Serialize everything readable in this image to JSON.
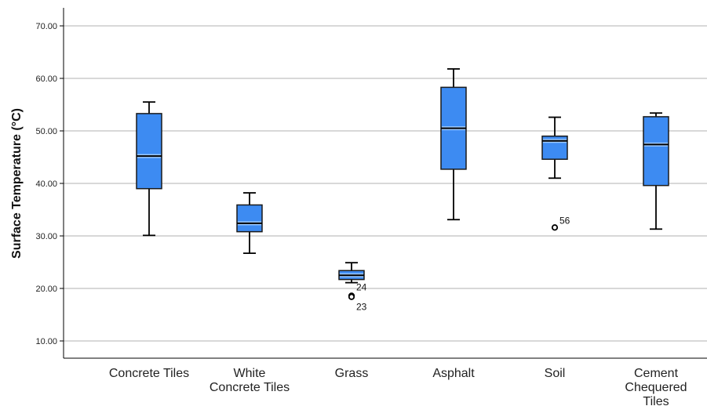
{
  "chart_data": {
    "type": "boxplot",
    "ylabel": "Surface Temperature (°C)",
    "ylim": [
      4.5,
      73
    ],
    "yticks": [
      10,
      20,
      30,
      40,
      50,
      60,
      70
    ],
    "ytick_labels": [
      "10.00",
      "20.00",
      "30.00",
      "40.00",
      "50.00",
      "60.00",
      "70.00"
    ],
    "grid": true,
    "box_color": "#3d8bf2",
    "categories": [
      {
        "label": "Concrete Tiles",
        "lines": [
          "Concrete Tiles"
        ],
        "min": 30.1,
        "q1": 39.0,
        "median": 45.2,
        "q3": 53.3,
        "max": 55.5,
        "outliers": []
      },
      {
        "label": "White Concrete Tiles",
        "lines": [
          "White",
          "Concrete Tiles"
        ],
        "min": 26.7,
        "q1": 30.8,
        "median": 32.4,
        "q3": 35.9,
        "max": 38.2,
        "outliers": []
      },
      {
        "label": "Grass",
        "lines": [
          "Grass"
        ],
        "min": 21.1,
        "q1": 21.7,
        "median": 22.5,
        "q3": 23.4,
        "max": 24.9,
        "outliers": [
          {
            "value": 18.6,
            "label": "24"
          },
          {
            "value": 18.4,
            "label": "23"
          }
        ]
      },
      {
        "label": "Asphalt",
        "lines": [
          "Asphalt"
        ],
        "min": 33.1,
        "q1": 42.7,
        "median": 50.5,
        "q3": 58.3,
        "max": 61.8,
        "outliers": []
      },
      {
        "label": "Soil",
        "lines": [
          "Soil"
        ],
        "min": 41.0,
        "q1": 44.6,
        "median": 48.1,
        "q3": 49.0,
        "max": 52.6,
        "outliers": [
          {
            "value": 31.6,
            "label": "56"
          }
        ]
      },
      {
        "label": "Cement Chequered Tiles",
        "lines": [
          "Cement",
          "Chequered",
          "Tiles"
        ],
        "min": 31.3,
        "q1": 39.6,
        "median": 47.4,
        "q3": 52.7,
        "max": 53.4,
        "outliers": []
      }
    ]
  }
}
